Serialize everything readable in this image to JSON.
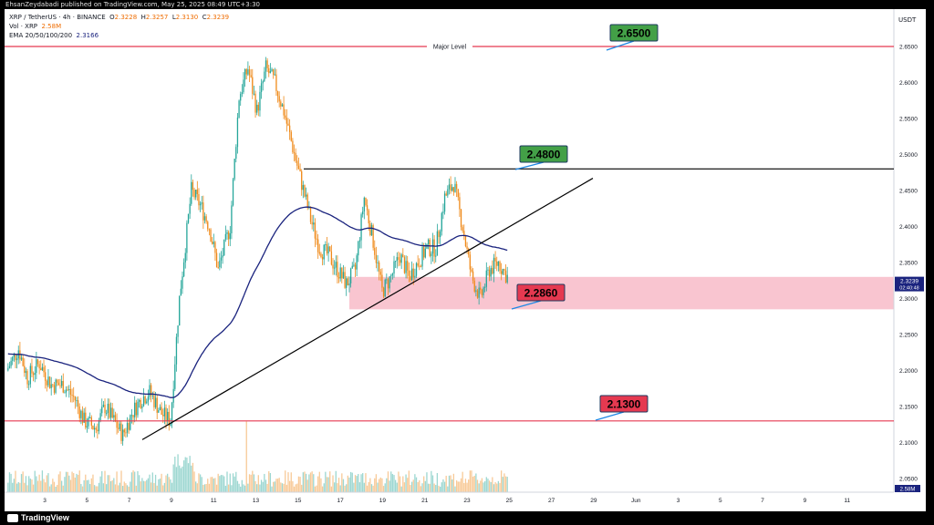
{
  "header": {
    "published": "EhsanZeydabadi published on TradingView.com, May 25, 2025 08:49 UTC+3:30"
  },
  "legend": {
    "symbol": "XRP / TetherUS · 4h · BINANCE",
    "o_label": "O",
    "o": "2.3228",
    "h_label": "H",
    "h": "2.3257",
    "l_label": "L",
    "l": "2.3130",
    "c_label": "C",
    "c": "2.3239",
    "vol_label": "Vol · XRP",
    "vol": "2.58M",
    "ema_label": "EMA 20/50/100/200",
    "ema": "2.3166"
  },
  "currency": "USDT",
  "brand": "TradingView",
  "colors": {
    "up": "#26a69a",
    "down": "#ef8a1a",
    "ema": "#1a237e",
    "level_line": "#e53950",
    "zone": "#f8bbc8",
    "green_label": "#43a047",
    "red_label": "#e53950"
  },
  "chart_data": {
    "type": "candlestick",
    "ylim": [
      2.03,
      2.68
    ],
    "y_ticks": [
      "2.6500",
      "2.6000",
      "2.5500",
      "2.5000",
      "2.4500",
      "2.4000",
      "2.3500",
      "2.3000",
      "2.2500",
      "2.2000",
      "2.1500",
      "2.1000",
      "2.0500"
    ],
    "y_tick_values": [
      2.65,
      2.6,
      2.55,
      2.5,
      2.45,
      2.4,
      2.35,
      2.3,
      2.25,
      2.2,
      2.15,
      2.1,
      2.05
    ],
    "x_ticks": [
      "3",
      "5",
      "7",
      "9",
      "11",
      "13",
      "15",
      "17",
      "19",
      "21",
      "23",
      "25",
      "27",
      "29",
      "Jun",
      "3",
      "5",
      "7",
      "9",
      "11"
    ],
    "current_price": "2.3239",
    "countdown": "02:40:48",
    "volume_label": "2.58M",
    "levels": [
      {
        "value": 2.65,
        "label": "2.6500",
        "tag": "Major Level"
      },
      {
        "value": 2.48,
        "label": "2.4800"
      },
      {
        "value": 2.286,
        "label": "2.2860"
      },
      {
        "value": 2.13,
        "label": "2.1300"
      }
    ],
    "zone": [
      2.285,
      2.33
    ],
    "ema_value": 2.3166,
    "annotations": [
      "Major Level",
      "2.6500",
      "2.4800",
      "2.2860",
      "2.1300"
    ]
  }
}
